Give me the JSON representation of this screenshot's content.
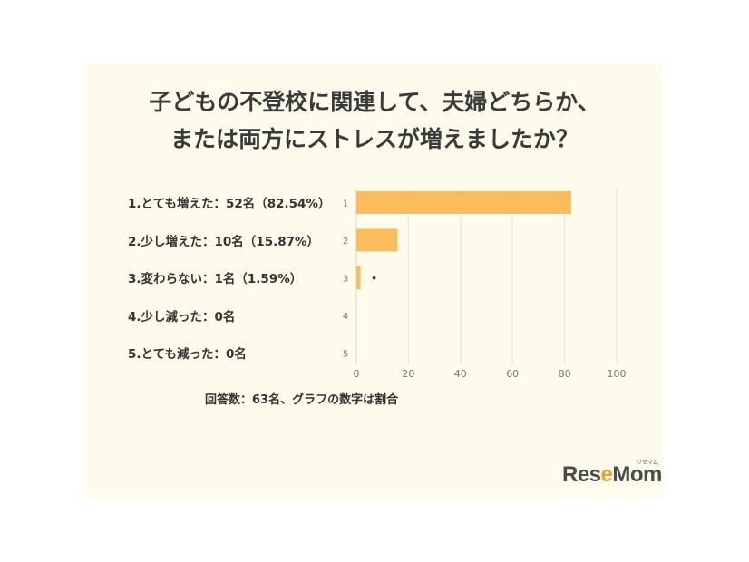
{
  "title_lines": [
    "子どもの不登校に関連して、夫婦どちらか、",
    "または両方にストレスが増えましたか？"
  ],
  "note": "回答数：63名、グラフの数字は割合",
  "logo": {
    "main": "ResеMom",
    "ruby": "リセマム"
  },
  "colors": {
    "bar": "#fbbd5c",
    "card": "#fdfbeb",
    "grid": "#e6e3d8"
  },
  "chart_data": {
    "type": "bar",
    "orientation": "horizontal",
    "title": "子どもの不登校に関連して、夫婦どちらか、または両方にストレスが増えましたか？",
    "categories": [
      "1.とても増えた：52名（82.54%）",
      "2.少し増えた：10名（15.87%）",
      "3.変わらない：1名（1.59%）",
      "4.少し減った：0名",
      "5.とても減った：0名"
    ],
    "row_ticks": [
      "1",
      "2",
      "3",
      "4",
      "5"
    ],
    "values": [
      82.54,
      15.87,
      1.59,
      0,
      0
    ],
    "xlim": [
      0,
      100
    ],
    "xticks": [
      0,
      20,
      40,
      60,
      80,
      100
    ],
    "grid": true,
    "annotations": [
      "•"
    ]
  }
}
